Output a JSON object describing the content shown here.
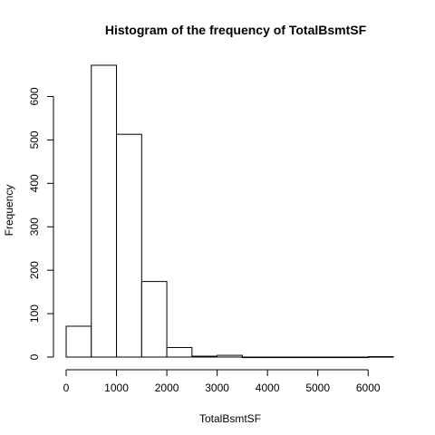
{
  "chart_data": {
    "type": "bar",
    "title": "Histogram of the frequency of TotalBsmtSF",
    "xlabel": "TotalBsmtSF",
    "ylabel": "Frequency",
    "bin_edges": [
      0,
      500,
      1000,
      1500,
      2000,
      2500,
      3000,
      3500,
      4000,
      4500,
      5000,
      5500,
      6000,
      6500
    ],
    "values": [
      71,
      672,
      513,
      174,
      22,
      2,
      4,
      0,
      0,
      0,
      0,
      0,
      1
    ],
    "xlim": [
      0,
      6500
    ],
    "ylim": [
      0,
      672
    ],
    "x_ticks": [
      0,
      1000,
      2000,
      3000,
      4000,
      5000,
      6000
    ],
    "y_ticks": [
      0,
      100,
      200,
      300,
      400,
      500,
      600
    ],
    "grid": false,
    "legend": "none"
  }
}
